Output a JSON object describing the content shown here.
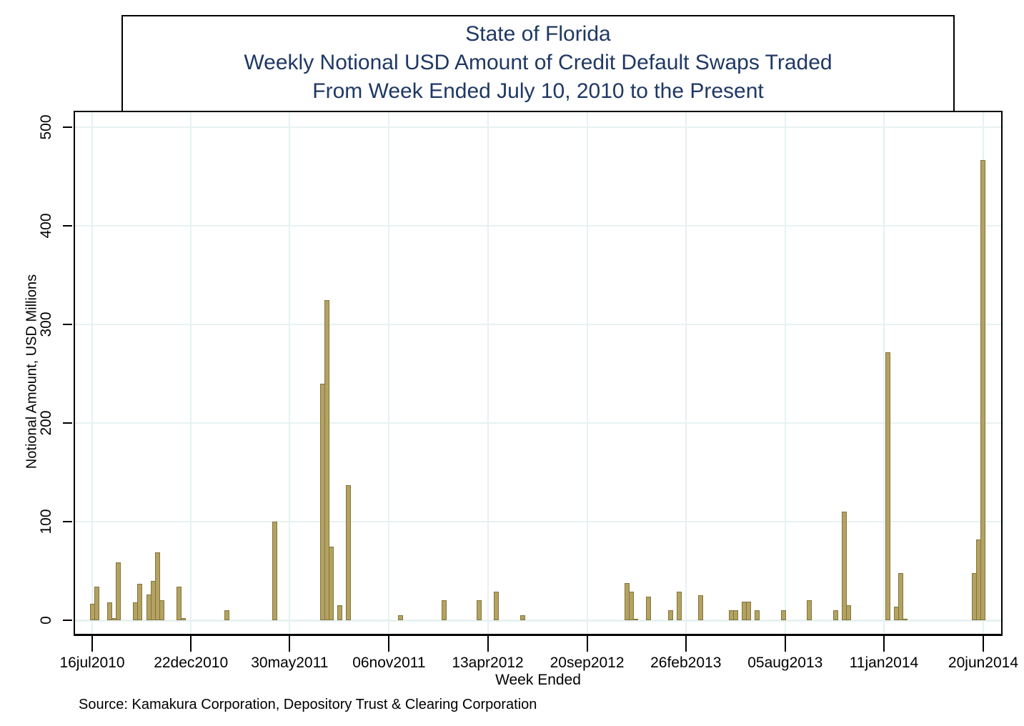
{
  "page": {
    "title_lines": [
      "State of Florida",
      "Weekly Notional USD Amount of Credit Default Swaps Traded",
      "From Week Ended July 10, 2010 to the Present"
    ],
    "source": "Source: Kamakura Corporation, Depository Trust & Clearing Corporation",
    "title_color": "#1f3864"
  },
  "chart_data": {
    "type": "bar",
    "title": "State of Florida / Weekly Notional USD Amount of Credit Default Swaps Traded / From Week Ended July 10, 2010 to the Present",
    "xlabel": "Week Ended",
    "ylabel": "Notional Amount, USD Millions",
    "ylim": [
      0,
      500
    ],
    "grid": true,
    "legend": "none",
    "bar_color": "#b3a262",
    "bar_edge_color": "#82753a",
    "grid_color": "#e8f1f2",
    "y_ticks": [
      0,
      100,
      200,
      300,
      400,
      500
    ],
    "y_tick_labels": [
      "0",
      "100",
      "200",
      "300",
      "400",
      "500"
    ],
    "x_tick_labels": [
      "16jul2010",
      "22dec2010",
      "30may2011",
      "06nov2011",
      "13apr2012",
      "20sep2012",
      "26feb2013",
      "05aug2013",
      "11jan2014",
      "20jun2014"
    ],
    "x_tick_dates": [
      "2010-07-16",
      "2010-12-22",
      "2011-05-30",
      "2011-11-06",
      "2012-04-13",
      "2012-09-20",
      "2013-02-26",
      "2013-08-05",
      "2014-01-11",
      "2014-06-20"
    ],
    "x_range_dates": [
      "2010-07-16",
      "2014-06-20"
    ],
    "points": [
      {
        "week_ended": "2010-07-16",
        "value": 17
      },
      {
        "week_ended": "2010-07-23",
        "value": 34
      },
      {
        "week_ended": "2010-08-13",
        "value": 18
      },
      {
        "week_ended": "2010-08-20",
        "value": 2
      },
      {
        "week_ended": "2010-08-27",
        "value": 59
      },
      {
        "week_ended": "2010-09-24",
        "value": 18
      },
      {
        "week_ended": "2010-10-01",
        "value": 37
      },
      {
        "week_ended": "2010-10-15",
        "value": 26
      },
      {
        "week_ended": "2010-10-22",
        "value": 40
      },
      {
        "week_ended": "2010-10-29",
        "value": 69
      },
      {
        "week_ended": "2010-11-05",
        "value": 20
      },
      {
        "week_ended": "2010-12-03",
        "value": 34
      },
      {
        "week_ended": "2010-12-10",
        "value": 2
      },
      {
        "week_ended": "2011-02-18",
        "value": 10
      },
      {
        "week_ended": "2011-05-06",
        "value": 100
      },
      {
        "week_ended": "2011-07-22",
        "value": 240
      },
      {
        "week_ended": "2011-07-29",
        "value": 325
      },
      {
        "week_ended": "2011-08-05",
        "value": 75
      },
      {
        "week_ended": "2011-08-19",
        "value": 15
      },
      {
        "week_ended": "2011-09-02",
        "value": 137
      },
      {
        "week_ended": "2011-11-25",
        "value": 5
      },
      {
        "week_ended": "2012-02-03",
        "value": 20
      },
      {
        "week_ended": "2012-03-30",
        "value": 20
      },
      {
        "week_ended": "2012-04-27",
        "value": 29
      },
      {
        "week_ended": "2012-06-08",
        "value": 5
      },
      {
        "week_ended": "2012-11-23",
        "value": 38
      },
      {
        "week_ended": "2012-11-30",
        "value": 29
      },
      {
        "week_ended": "2012-12-07",
        "value": 1
      },
      {
        "week_ended": "2012-12-28",
        "value": 24
      },
      {
        "week_ended": "2013-02-01",
        "value": 10
      },
      {
        "week_ended": "2013-02-15",
        "value": 29
      },
      {
        "week_ended": "2013-03-22",
        "value": 25
      },
      {
        "week_ended": "2013-05-10",
        "value": 10
      },
      {
        "week_ended": "2013-05-17",
        "value": 10
      },
      {
        "week_ended": "2013-05-31",
        "value": 19
      },
      {
        "week_ended": "2013-06-07",
        "value": 19
      },
      {
        "week_ended": "2013-06-21",
        "value": 10
      },
      {
        "week_ended": "2013-08-02",
        "value": 10
      },
      {
        "week_ended": "2013-09-13",
        "value": 20
      },
      {
        "week_ended": "2013-10-25",
        "value": 10
      },
      {
        "week_ended": "2013-11-08",
        "value": 110
      },
      {
        "week_ended": "2013-11-15",
        "value": 15
      },
      {
        "week_ended": "2014-01-17",
        "value": 272
      },
      {
        "week_ended": "2014-01-31",
        "value": 14
      },
      {
        "week_ended": "2014-02-07",
        "value": 48
      },
      {
        "week_ended": "2014-02-14",
        "value": 1
      },
      {
        "week_ended": "2014-06-06",
        "value": 48
      },
      {
        "week_ended": "2014-06-13",
        "value": 82
      },
      {
        "week_ended": "2014-06-20",
        "value": 467
      }
    ]
  }
}
